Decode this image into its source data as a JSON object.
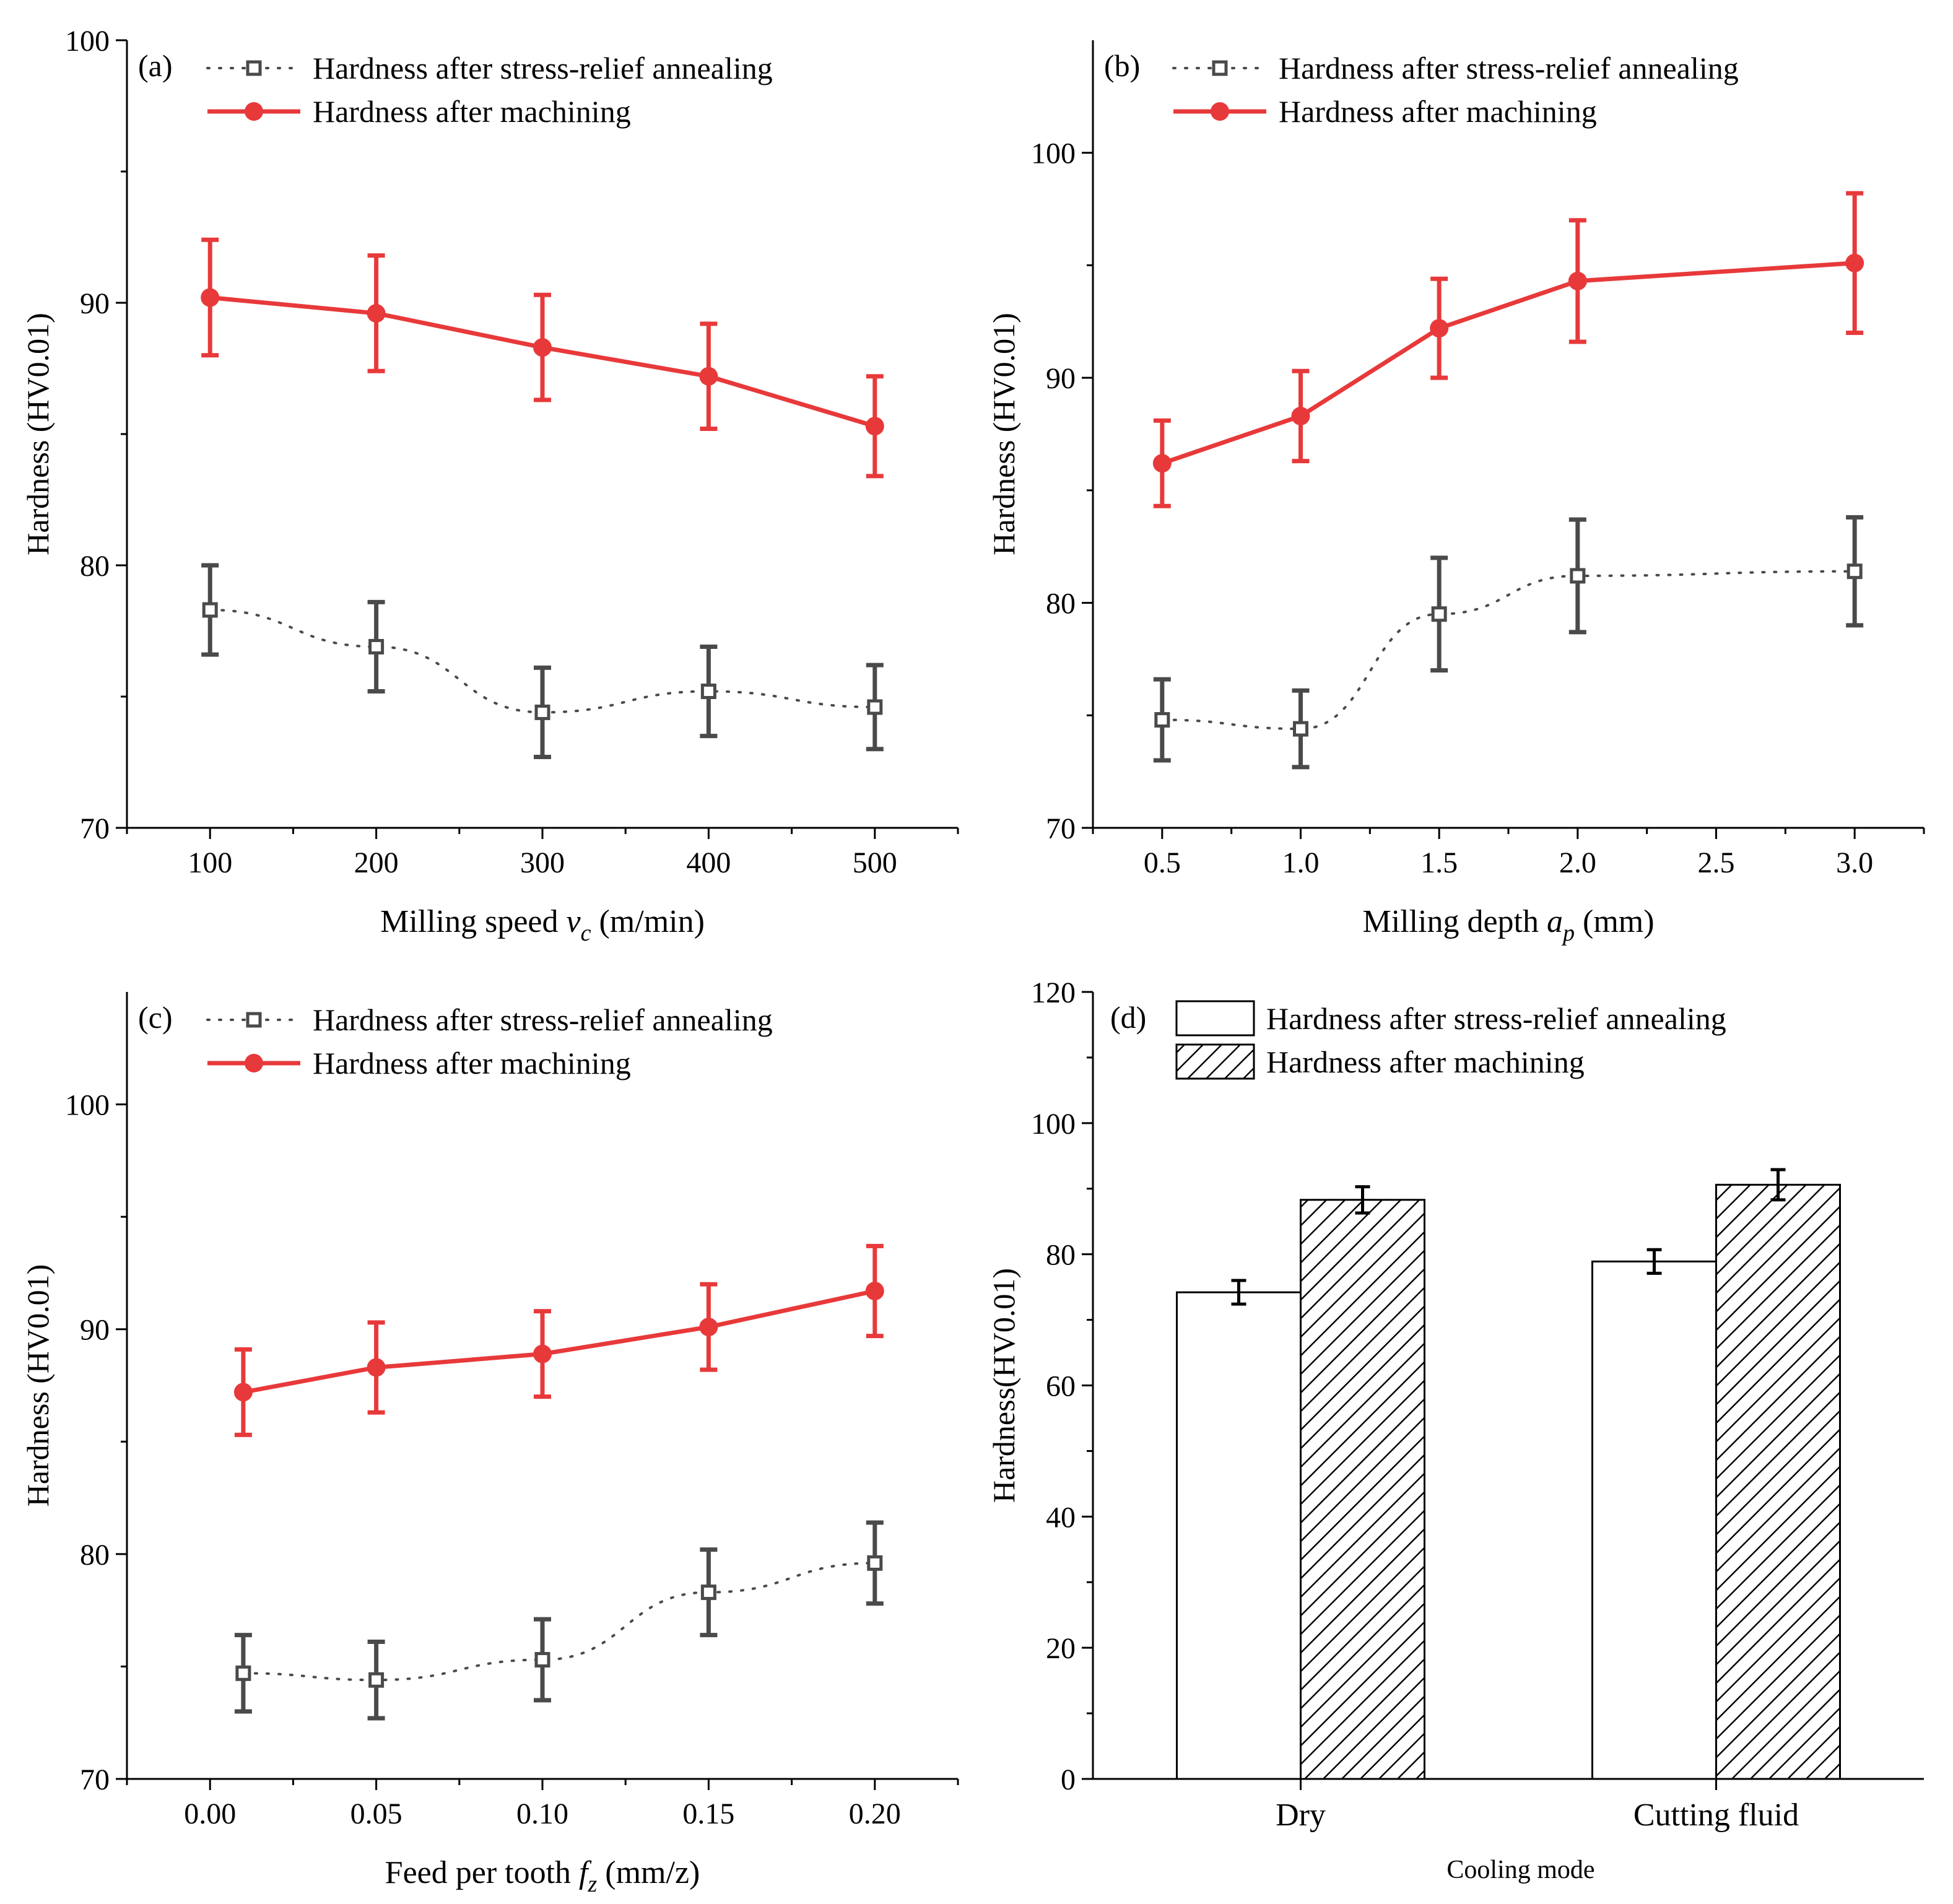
{
  "colors": {
    "machined": "#e8393a",
    "annealed": "#4a4a4a",
    "axis": "#000000"
  },
  "chart_data": [
    {
      "panel": "(a)",
      "type": "line",
      "xlabel_main": "Milling speed ",
      "xlabel_var": "v",
      "xlabel_sub": "c",
      "xlabel_unit": " (m/min)",
      "ylabel": "Hardness (HV0.01)",
      "xlim": [
        50,
        550
      ],
      "ylim": [
        70,
        100
      ],
      "xticks": [
        100,
        200,
        300,
        400,
        500
      ],
      "xtick_labels": [
        "100",
        "200",
        "300",
        "400",
        "500"
      ],
      "yticks": [
        70,
        80,
        90,
        100
      ],
      "ytick_labels": [
        "70",
        "80",
        "90",
        "100"
      ],
      "legend": [
        "Hardness after stress-relief annealing",
        "Hardness after machining"
      ],
      "series": [
        {
          "name": "Hardness after stress-relief annealing",
          "style": "dotted-square",
          "x": [
            100,
            200,
            300,
            400,
            500
          ],
          "values": [
            78.3,
            76.9,
            74.4,
            75.2,
            74.6
          ],
          "err": [
            1.7,
            1.7,
            1.7,
            1.7,
            1.6
          ]
        },
        {
          "name": "Hardness after machining",
          "style": "solid-circle",
          "x": [
            100,
            200,
            300,
            400,
            500
          ],
          "values": [
            90.2,
            89.6,
            88.3,
            87.2,
            85.3
          ],
          "err": [
            2.2,
            2.2,
            2.0,
            2.0,
            1.9
          ]
        }
      ]
    },
    {
      "panel": "(b)",
      "type": "line",
      "xlabel_main": "Milling depth ",
      "xlabel_var": "a",
      "xlabel_sub": "p",
      "xlabel_unit": " (mm)",
      "ylabel": "Hardness (HV0.01)",
      "xlim": [
        0.25,
        3.25
      ],
      "ylim": [
        70,
        105
      ],
      "xticks": [
        0.5,
        1.0,
        1.5,
        2.0,
        2.5,
        3.0
      ],
      "xtick_labels": [
        "0.5",
        "1.0",
        "1.5",
        "2.0",
        "2.5",
        "3.0"
      ],
      "yticks": [
        70,
        80,
        90,
        100
      ],
      "ytick_labels": [
        "70",
        "80",
        "90",
        "100"
      ],
      "legend": [
        "Hardness after stress-relief annealing",
        "Hardness after machining"
      ],
      "series": [
        {
          "name": "Hardness after stress-relief annealing",
          "style": "dotted-square",
          "x": [
            0.5,
            1.0,
            1.5,
            2.0,
            3.0
          ],
          "values": [
            74.8,
            74.4,
            79.5,
            81.2,
            81.4
          ],
          "err": [
            1.8,
            1.7,
            2.5,
            2.5,
            2.4
          ]
        },
        {
          "name": "Hardness after machining",
          "style": "solid-circle",
          "x": [
            0.5,
            1.0,
            1.5,
            2.0,
            3.0
          ],
          "values": [
            86.2,
            88.3,
            92.2,
            94.3,
            95.1
          ],
          "err": [
            1.9,
            2.0,
            2.2,
            2.7,
            3.1
          ]
        }
      ]
    },
    {
      "panel": "(c)",
      "type": "line",
      "xlabel_main": "Feed per tooth ",
      "xlabel_var": "f",
      "xlabel_sub": "z",
      "xlabel_unit": " (mm/z)",
      "ylabel": "Hardness (HV0.01)",
      "xlim": [
        -0.025,
        0.225
      ],
      "ylim": [
        70,
        105
      ],
      "xticks": [
        0.0,
        0.05,
        0.1,
        0.15,
        0.2
      ],
      "xtick_labels": [
        "0.00",
        "0.05",
        "0.10",
        "0.15",
        "0.20"
      ],
      "yticks": [
        70,
        80,
        90,
        100
      ],
      "ytick_labels": [
        "70",
        "80",
        "90",
        "100"
      ],
      "legend": [
        "Hardness after stress-relief annealing",
        "Hardness after machining"
      ],
      "series": [
        {
          "name": "Hardness after stress-relief annealing",
          "style": "dotted-square",
          "x": [
            0.01,
            0.05,
            0.1,
            0.15,
            0.2
          ],
          "values": [
            74.7,
            74.4,
            75.3,
            78.3,
            79.6
          ],
          "err": [
            1.7,
            1.7,
            1.8,
            1.9,
            1.8
          ]
        },
        {
          "name": "Hardness after machining",
          "style": "solid-circle",
          "x": [
            0.01,
            0.05,
            0.1,
            0.15,
            0.2
          ],
          "values": [
            87.2,
            88.3,
            88.9,
            90.1,
            91.7
          ],
          "err": [
            1.9,
            2.0,
            1.9,
            1.9,
            2.0
          ]
        }
      ]
    },
    {
      "panel": "(d)",
      "type": "bar",
      "xlabel": "Cooling mode",
      "ylabel": "Hardness(HV0.01)",
      "ylim": [
        0,
        120
      ],
      "yticks": [
        0,
        20,
        40,
        60,
        80,
        100,
        120
      ],
      "ytick_labels": [
        "0",
        "20",
        "40",
        "60",
        "80",
        "100",
        "120"
      ],
      "categories": [
        "Dry",
        "Cutting fluid"
      ],
      "legend": [
        "Hardness after stress-relief annealing",
        "Hardness after machining"
      ],
      "series": [
        {
          "name": "Hardness after stress-relief annealing",
          "style": "plain",
          "values": [
            74.2,
            78.9
          ],
          "err": [
            1.8,
            1.8
          ]
        },
        {
          "name": "Hardness after machining",
          "style": "hatched",
          "values": [
            88.3,
            90.6
          ],
          "err": [
            2.0,
            2.3
          ]
        }
      ]
    }
  ]
}
